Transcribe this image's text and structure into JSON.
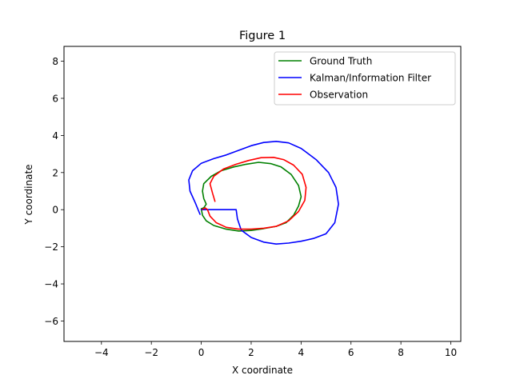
{
  "chart_data": {
    "type": "line",
    "title": "Figure 1",
    "xlabel": "X coordinate",
    "ylabel": "Y coordinate",
    "xlim": [
      -5.5,
      10.4
    ],
    "ylim": [
      -7.1,
      8.8
    ],
    "xticks": [
      -4,
      -2,
      0,
      2,
      4,
      6,
      8,
      10
    ],
    "yticks": [
      -6,
      -4,
      -2,
      0,
      2,
      4,
      6,
      8
    ],
    "grid": false,
    "legend_position": "upper right",
    "series": [
      {
        "name": "Ground Truth",
        "color": "#008000",
        "points": [
          [
            0.0,
            0.05
          ],
          [
            0.05,
            -0.3
          ],
          [
            0.2,
            -0.6
          ],
          [
            0.5,
            -0.85
          ],
          [
            1.0,
            -1.05
          ],
          [
            1.5,
            -1.15
          ],
          [
            2.0,
            -1.12
          ],
          [
            2.5,
            -1.02
          ],
          [
            3.0,
            -0.9
          ],
          [
            3.4,
            -0.7
          ],
          [
            3.7,
            -0.3
          ],
          [
            3.9,
            0.2
          ],
          [
            4.0,
            0.7
          ],
          [
            3.9,
            1.3
          ],
          [
            3.6,
            1.9
          ],
          [
            3.2,
            2.3
          ],
          [
            2.8,
            2.48
          ],
          [
            2.3,
            2.55
          ],
          [
            1.8,
            2.45
          ],
          [
            1.3,
            2.3
          ],
          [
            0.8,
            2.1
          ],
          [
            0.4,
            1.8
          ],
          [
            0.1,
            1.4
          ],
          [
            0.05,
            1.0
          ],
          [
            0.1,
            0.6
          ],
          [
            0.2,
            0.3
          ],
          [
            0.1,
            0.1
          ],
          [
            0.0,
            0.05
          ]
        ]
      },
      {
        "name": "Kalman/Information Filter",
        "color": "#0000ff",
        "points": [
          [
            0.0,
            0.0
          ],
          [
            0.5,
            0.0
          ],
          [
            1.0,
            0.0
          ],
          [
            1.4,
            0.0
          ],
          [
            1.45,
            -0.5
          ],
          [
            1.6,
            -1.1
          ],
          [
            2.0,
            -1.5
          ],
          [
            2.5,
            -1.75
          ],
          [
            3.0,
            -1.85
          ],
          [
            3.5,
            -1.8
          ],
          [
            4.0,
            -1.7
          ],
          [
            4.5,
            -1.55
          ],
          [
            5.0,
            -1.3
          ],
          [
            5.35,
            -0.7
          ],
          [
            5.5,
            0.3
          ],
          [
            5.4,
            1.2
          ],
          [
            5.1,
            2.0
          ],
          [
            4.6,
            2.7
          ],
          [
            4.0,
            3.3
          ],
          [
            3.5,
            3.6
          ],
          [
            3.0,
            3.68
          ],
          [
            2.5,
            3.62
          ],
          [
            2.0,
            3.45
          ],
          [
            1.5,
            3.2
          ],
          [
            1.0,
            2.95
          ],
          [
            0.5,
            2.75
          ],
          [
            0.0,
            2.5
          ],
          [
            -0.35,
            2.1
          ],
          [
            -0.5,
            1.6
          ],
          [
            -0.45,
            1.0
          ],
          [
            -0.25,
            0.4
          ],
          [
            -0.05,
            -0.25
          ]
        ]
      },
      {
        "name": "Observation",
        "color": "#ff0000",
        "points": [
          [
            0.55,
            0.45
          ],
          [
            0.45,
            0.9
          ],
          [
            0.35,
            1.4
          ],
          [
            0.5,
            1.8
          ],
          [
            0.9,
            2.2
          ],
          [
            1.4,
            2.45
          ],
          [
            1.9,
            2.65
          ],
          [
            2.4,
            2.8
          ],
          [
            2.9,
            2.82
          ],
          [
            3.3,
            2.7
          ],
          [
            3.7,
            2.4
          ],
          [
            4.05,
            1.9
          ],
          [
            4.2,
            1.2
          ],
          [
            4.15,
            0.5
          ],
          [
            3.9,
            -0.1
          ],
          [
            3.5,
            -0.6
          ],
          [
            3.0,
            -0.9
          ],
          [
            2.5,
            -1.0
          ],
          [
            2.0,
            -1.05
          ],
          [
            1.5,
            -1.05
          ],
          [
            1.0,
            -0.95
          ],
          [
            0.6,
            -0.7
          ],
          [
            0.35,
            -0.35
          ],
          [
            0.25,
            0.0
          ],
          [
            0.15,
            0.1
          ],
          [
            0.05,
            0.02
          ]
        ]
      }
    ]
  }
}
